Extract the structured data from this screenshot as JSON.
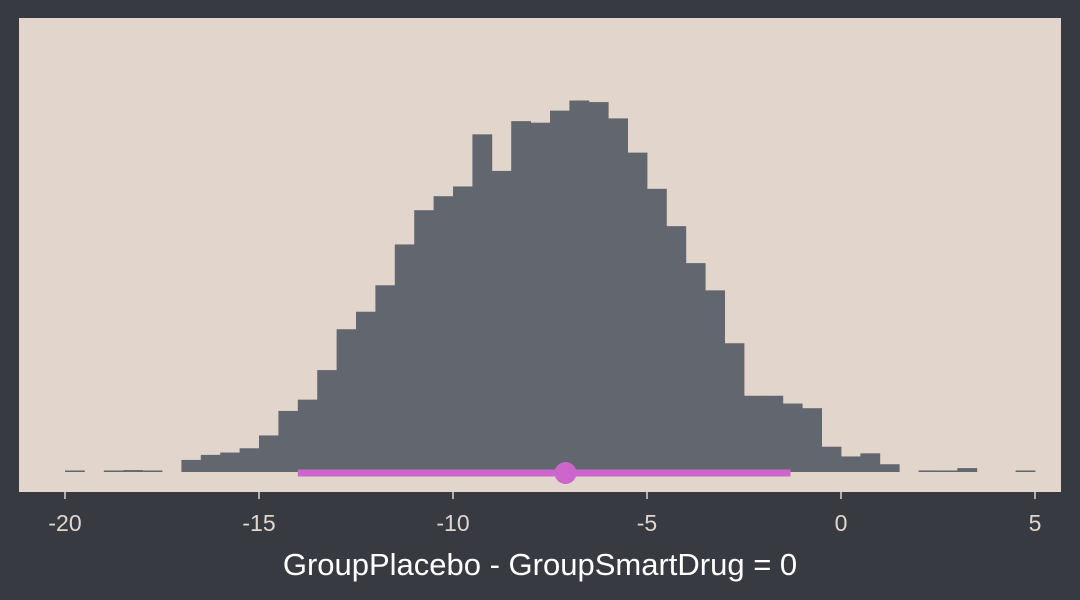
{
  "chart_data": {
    "type": "bar",
    "subtype": "histogram",
    "title": "",
    "xlabel": "GroupPlacebo - GroupSmartDrug = 0",
    "ylabel": "",
    "xlim": [
      -21,
      6
    ],
    "ylim": [
      0,
      1
    ],
    "y_axis_shown": false,
    "x_ticks": [
      -20,
      -15,
      -10,
      -5,
      0,
      5
    ],
    "x_tick_labels": [
      "-20",
      "-15",
      "-10",
      "-5",
      "0",
      "5"
    ],
    "grid": false,
    "bin_edges": [
      -20,
      -19.5,
      -19,
      -18.5,
      -18,
      -17.5,
      -17,
      -16.5,
      -16,
      -15.5,
      -15,
      -14.5,
      -14,
      -13.5,
      -13,
      -12.5,
      -12,
      -11.5,
      -11,
      -10.5,
      -10,
      -9.5,
      -9,
      -8.5,
      -8,
      -7.5,
      -7,
      -6.5,
      -6,
      -5.5,
      -5,
      -4.5,
      -4,
      -3.5,
      -3,
      -2.5,
      -2,
      -1.5,
      -1,
      -0.5,
      0,
      0.5,
      1,
      1.5,
      2,
      2.5,
      3,
      3.5,
      4,
      4.5
    ],
    "values": [
      0.002,
      0,
      0.002,
      0.005,
      0.002,
      0,
      0.031,
      0.044,
      0.05,
      0.061,
      0.094,
      0.157,
      0.186,
      0.262,
      0.367,
      0.412,
      0.48,
      0.585,
      0.673,
      0.709,
      0.734,
      0.868,
      0.774,
      0.902,
      0.898,
      0.929,
      0.955,
      0.951,
      0.909,
      0.821,
      0.728,
      0.632,
      0.537,
      0.467,
      0.331,
      0.196,
      0.196,
      0.176,
      0.164,
      0.065,
      0.04,
      0.048,
      0.02,
      0,
      0.004,
      0.002,
      0.01,
      0,
      0,
      0.002
    ],
    "interval": {
      "low": -14,
      "high": -1.3,
      "point": -7.1
    },
    "colors": {
      "background": "#373a40",
      "panel": "#e2d5cb",
      "bars": "#62676f",
      "interval": "#cc66cc",
      "text": "#e2d5cb"
    }
  }
}
